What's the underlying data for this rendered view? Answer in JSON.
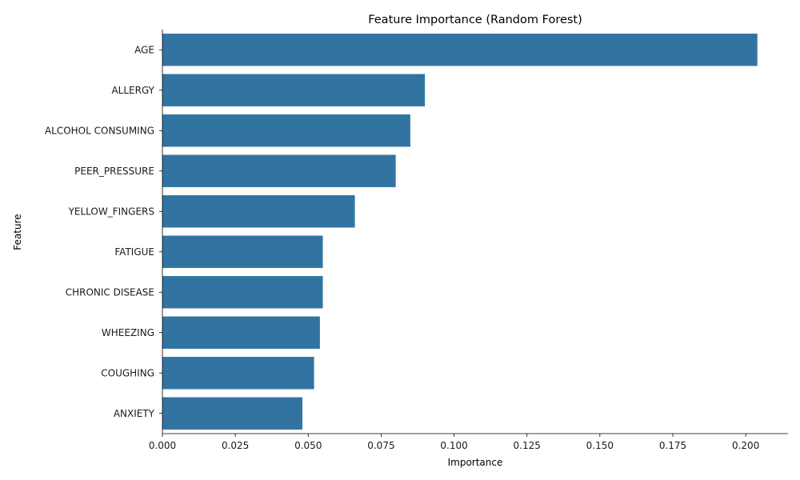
{
  "chart_data": {
    "type": "bar",
    "orientation": "horizontal",
    "title": "Feature Importance (Random Forest)",
    "xlabel": "Importance",
    "ylabel": "Feature",
    "categories": [
      "AGE",
      "ALLERGY",
      "ALCOHOL CONSUMING",
      "PEER_PRESSURE",
      "YELLOW_FINGERS",
      "FATIGUE",
      "CHRONIC DISEASE",
      "WHEEZING",
      "COUGHING",
      "ANXIETY"
    ],
    "values": [
      0.204,
      0.09,
      0.085,
      0.08,
      0.066,
      0.055,
      0.055,
      0.054,
      0.052,
      0.048
    ],
    "xlim": [
      0,
      0.2145
    ],
    "xticks": [
      0.0,
      0.025,
      0.05,
      0.075,
      0.1,
      0.125,
      0.15,
      0.175,
      0.2
    ],
    "xtick_labels": [
      "0.000",
      "0.025",
      "0.050",
      "0.075",
      "0.100",
      "0.125",
      "0.150",
      "0.175",
      "0.200"
    ],
    "bar_color": "#3274a1",
    "grid": false
  }
}
